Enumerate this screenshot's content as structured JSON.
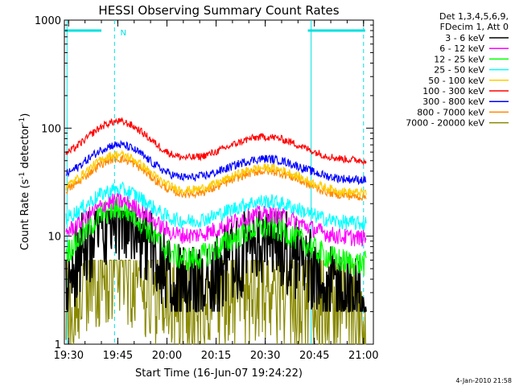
{
  "chart_data": {
    "type": "line",
    "title": "HESSI Observing Summary Count Rates",
    "xlabel": "Start Time (16-Jun-07 19:24:22)",
    "ylabel_main": "Count Rate (s",
    "ylabel_sup1": "-1",
    "ylabel_mid": " detector",
    "ylabel_sup2": "-1",
    "ylabel_end": ")",
    "yscale": "log",
    "ylim": [
      1,
      1000
    ],
    "xlim_minutes": [
      -16.3,
      78
    ],
    "xticks": [
      {
        "label": "19:30",
        "min": -15
      },
      {
        "label": "19:45",
        "min": 0
      },
      {
        "label": "20:00",
        "min": 15
      },
      {
        "label": "20:15",
        "min": 30
      },
      {
        "label": "20:30",
        "min": 45
      },
      {
        "label": "20:45",
        "min": 60
      },
      {
        "label": "21:00",
        "min": 75
      }
    ],
    "yticks": [
      {
        "label": "1",
        "value": 1
      },
      {
        "label": "10",
        "value": 10
      },
      {
        "label": "100",
        "value": 100
      },
      {
        "label": "1000",
        "value": 1000
      }
    ],
    "legend": {
      "header1": "Det 1,3,4,5,6,9,",
      "header2": "FDecim 1, Att 0",
      "placement": "right"
    },
    "flags": {
      "night_label": "N",
      "night_bars": [
        [
          -16.3,
          -5
        ],
        [
          58,
          75.5
        ]
      ],
      "vlines": [
        -15.5,
        -1,
        59,
        75
      ]
    },
    "timestamp": "4-Jan-2010 21:58",
    "series": [
      {
        "name": "3 - 6 keV",
        "color": "#000000",
        "base": 2.6,
        "peak1": 14,
        "peak2": 8,
        "noise": 0.18,
        "min": 2,
        "max": 17
      },
      {
        "name": "6 - 12 keV",
        "color": "#ff00ff",
        "base": 9.5,
        "peak1": 21,
        "peak2": 16,
        "noise": 0.08
      },
      {
        "name": "12 - 25 keV",
        "color": "#00ff00",
        "base": 5.5,
        "peak1": 18,
        "peak2": 12,
        "noise": 0.12
      },
      {
        "name": "25 - 50 keV",
        "color": "#00ffff",
        "base": 13,
        "peak1": 27,
        "peak2": 21,
        "noise": 0.07
      },
      {
        "name": "50 - 100 keV",
        "color": "#ffcc00",
        "base": 25,
        "peak1": 57,
        "peak2": 43,
        "noise": 0.04
      },
      {
        "name": "100 - 300 keV",
        "color": "#ff0000",
        "base": 50,
        "peak1": 115,
        "peak2": 83,
        "noise": 0.035
      },
      {
        "name": "300 - 800 keV",
        "color": "#0000ff",
        "base": 33,
        "peak1": 70,
        "peak2": 52,
        "noise": 0.04
      },
      {
        "name": "800 - 7000 keV",
        "color": "#ff8800",
        "base": 23,
        "peak1": 52,
        "peak2": 40,
        "noise": 0.04
      },
      {
        "name": "7000 - 20000 keV",
        "color": "#888800",
        "base": 2.0,
        "peak1": 5.5,
        "peak2": 3.5,
        "noise": 0.25,
        "min": 1,
        "max": 6
      }
    ]
  }
}
